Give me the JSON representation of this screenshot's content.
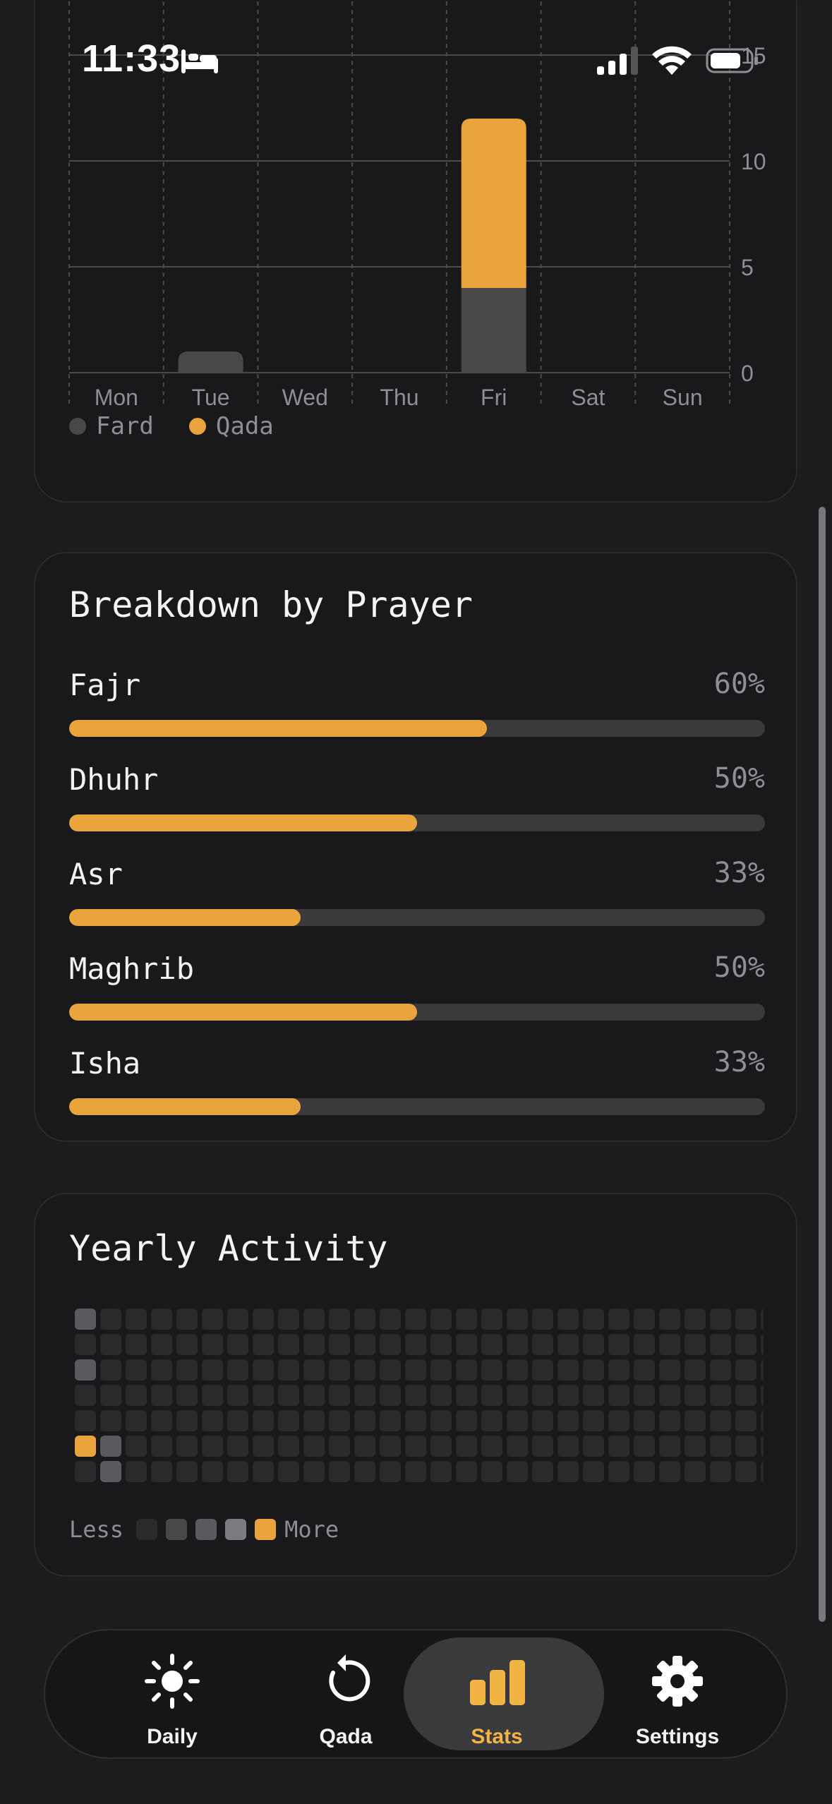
{
  "status_bar": {
    "time": "11:33"
  },
  "weekly_chart": {
    "legend": [
      {
        "label": "Fard",
        "color": "#48484a"
      },
      {
        "label": "Qada",
        "color": "#e9a43e"
      }
    ]
  },
  "chart_data": {
    "type": "bar",
    "stacked": true,
    "categories": [
      "Mon",
      "Tue",
      "Wed",
      "Thu",
      "Fri",
      "Sat",
      "Sun"
    ],
    "series": [
      {
        "name": "Fard",
        "values": [
          0,
          1,
          0,
          0,
          4,
          0,
          0
        ],
        "color": "#48484a"
      },
      {
        "name": "Qada",
        "values": [
          0,
          0,
          0,
          0,
          8,
          0,
          0
        ],
        "color": "#e9a43e"
      }
    ],
    "yticks": [
      0,
      5,
      10,
      15
    ],
    "ylim": [
      0,
      15
    ],
    "grid": true,
    "legend_position": "bottom-left"
  },
  "breakdown": {
    "title": "Breakdown by Prayer",
    "items": [
      {
        "name": "Fajr",
        "percent_label": "60%",
        "fraction": 0.6
      },
      {
        "name": "Dhuhr",
        "percent_label": "50%",
        "fraction": 0.5
      },
      {
        "name": "Asr",
        "percent_label": "33%",
        "fraction": 0.333
      },
      {
        "name": "Maghrib",
        "percent_label": "50%",
        "fraction": 0.5
      },
      {
        "name": "Isha",
        "percent_label": "33%",
        "fraction": 0.333
      }
    ]
  },
  "yearly": {
    "title": "Yearly Activity",
    "legend_less": "Less",
    "legend_more": "More",
    "levels": [
      "#2a2a2d",
      "#48484a",
      "#5a5a5e",
      "#7c7c80",
      "#e9a43e"
    ],
    "active_cells": [
      {
        "col": 0,
        "row": 0,
        "level": 2
      },
      {
        "col": 0,
        "row": 2,
        "level": 2
      },
      {
        "col": 0,
        "row": 5,
        "level": 4
      },
      {
        "col": 1,
        "row": 5,
        "level": 2
      },
      {
        "col": 1,
        "row": 6,
        "level": 2
      }
    ]
  },
  "tabbar": {
    "tabs": [
      {
        "label": "Daily",
        "icon": "sun-icon",
        "active": false
      },
      {
        "label": "Qada",
        "icon": "rotate-back-icon",
        "active": false
      },
      {
        "label": "Stats",
        "icon": "bar-chart-icon",
        "active": true
      },
      {
        "label": "Settings",
        "icon": "gear-icon",
        "active": false
      }
    ]
  }
}
